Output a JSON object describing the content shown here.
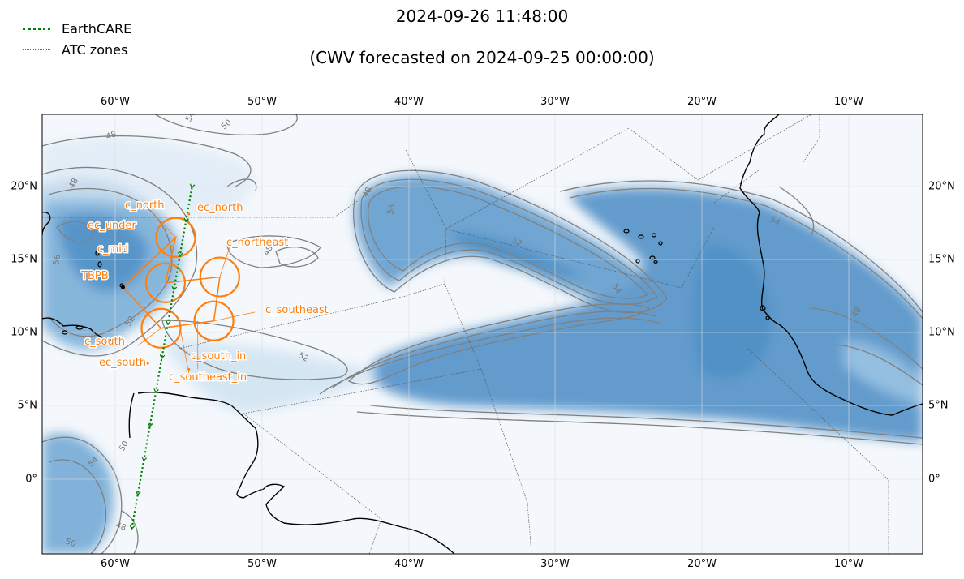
{
  "title": "2024-09-26 11:48:00",
  "subtitle": "(CWV forecasted on 2024-09-25 00:00:00)",
  "legend": {
    "earthcare": "EarthCARE",
    "atc": "ATC zones"
  },
  "colors": {
    "earthcare": "#008000",
    "circles": "#ff7f0e",
    "coast": "#000000",
    "contours": "#808080",
    "field_light": "#f4f8fc",
    "field_dark": "#4a8cc4"
  },
  "axes": {
    "lon_range": [
      -65,
      -5
    ],
    "lat_range": [
      -5,
      25
    ],
    "xticks_top": [
      "60°W",
      "50°W",
      "40°W",
      "30°W",
      "20°W",
      "10°W"
    ],
    "xticks_bottom": [
      "60°W",
      "50°W",
      "40°W",
      "30°W",
      "20°W",
      "10°W"
    ],
    "yticks_left": [
      "20°N",
      "15°N",
      "10°N",
      "5°N",
      "0°"
    ],
    "yticks_right": [
      "20°N",
      "15°N",
      "10°N",
      "5°N",
      "0°"
    ]
  },
  "circles": [
    {
      "name": "c_north",
      "lon": -55.9,
      "lat": 16.6
    },
    {
      "name": "c_mid",
      "lon": -56.6,
      "lat": 13.5
    },
    {
      "name": "c_northeast",
      "lon": -52.9,
      "lat": 13.9
    },
    {
      "name": "c_south",
      "lon": -56.9,
      "lat": 10.4
    },
    {
      "name": "c_southeast",
      "lon": -53.3,
      "lat": 10.9
    }
  ],
  "points": [
    {
      "name": "ec_north",
      "lon": -55.0,
      "lat": 18.2
    },
    {
      "name": "ec_under",
      "lon": -56.2,
      "lat": 16.0
    },
    {
      "name": "TBPB",
      "lon": -59.5,
      "lat": 13.2
    },
    {
      "name": "c_south_in",
      "lon": -54.4,
      "lat": 8.3
    },
    {
      "name": "c_southeast_in",
      "lon": -55.0,
      "lat": 7.6
    },
    {
      "name": "ec_south",
      "lon": -57.8,
      "lat": 8.0
    }
  ],
  "labels": {
    "c_north": "c_north",
    "ec_north": "ec_north",
    "ec_under": "ec_under",
    "c_mid": "c_mid",
    "c_northeast": "c_northeast",
    "TBPB": "TBPB",
    "c_southeast": "c_southeast",
    "c_south": "c_south",
    "ec_south": "ec_south",
    "c_south_in": "c_south_in",
    "c_southeast_in": "c_southeast_in"
  },
  "contour_labels": [
    "48",
    "50",
    "52",
    "54",
    "56"
  ],
  "track": [
    {
      "lon": -54.8,
      "lat": 20.0
    },
    {
      "lon": -58.9,
      "lat": -3.3
    }
  ]
}
